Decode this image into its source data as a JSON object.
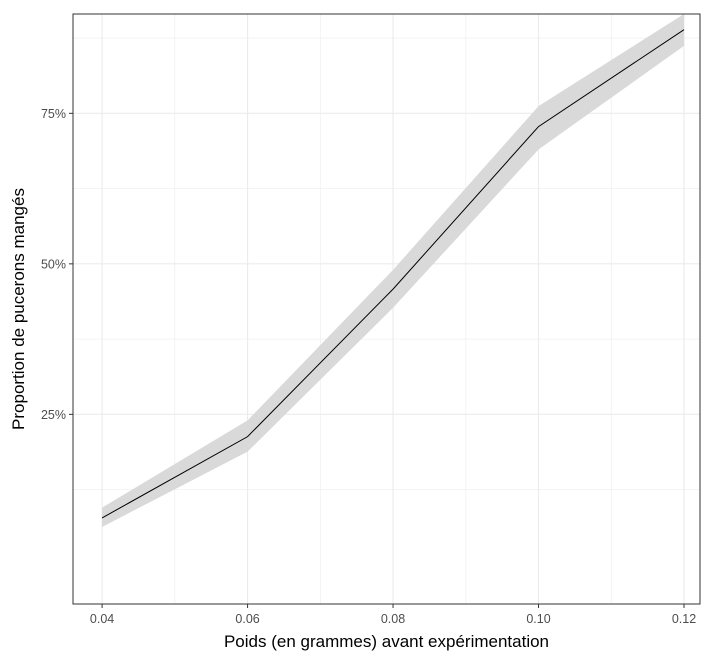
{
  "chart_data": {
    "type": "line",
    "title": "",
    "xlabel": "Poids (en grammes) avant expérimentation",
    "ylabel": "Proportion de pucerons mangés",
    "xlim": [
      0.036,
      0.1222
    ],
    "ylim": [
      -0.065,
      0.915
    ],
    "x_ticks": [
      0.04,
      0.06,
      0.08,
      0.1,
      0.12
    ],
    "x_tick_labels": [
      "0.04",
      "0.06",
      "0.08",
      "0.10",
      "0.12"
    ],
    "y_ticks": [
      0.25,
      0.5,
      0.75
    ],
    "y_tick_labels": [
      "25%",
      "50%",
      "75%"
    ],
    "grid": true,
    "theme": "bw",
    "series": [
      {
        "x": [
          0.04,
          0.06,
          0.08,
          0.1,
          0.12
        ],
        "y": [
          0.078,
          0.213,
          0.458,
          0.728,
          0.889
        ],
        "lower": [
          0.063,
          0.188,
          0.427,
          0.69,
          0.862
        ],
        "upper": [
          0.095,
          0.24,
          0.49,
          0.762,
          0.915
        ],
        "color": "#000000",
        "ribbon_color": "#d9d9d9"
      }
    ]
  }
}
